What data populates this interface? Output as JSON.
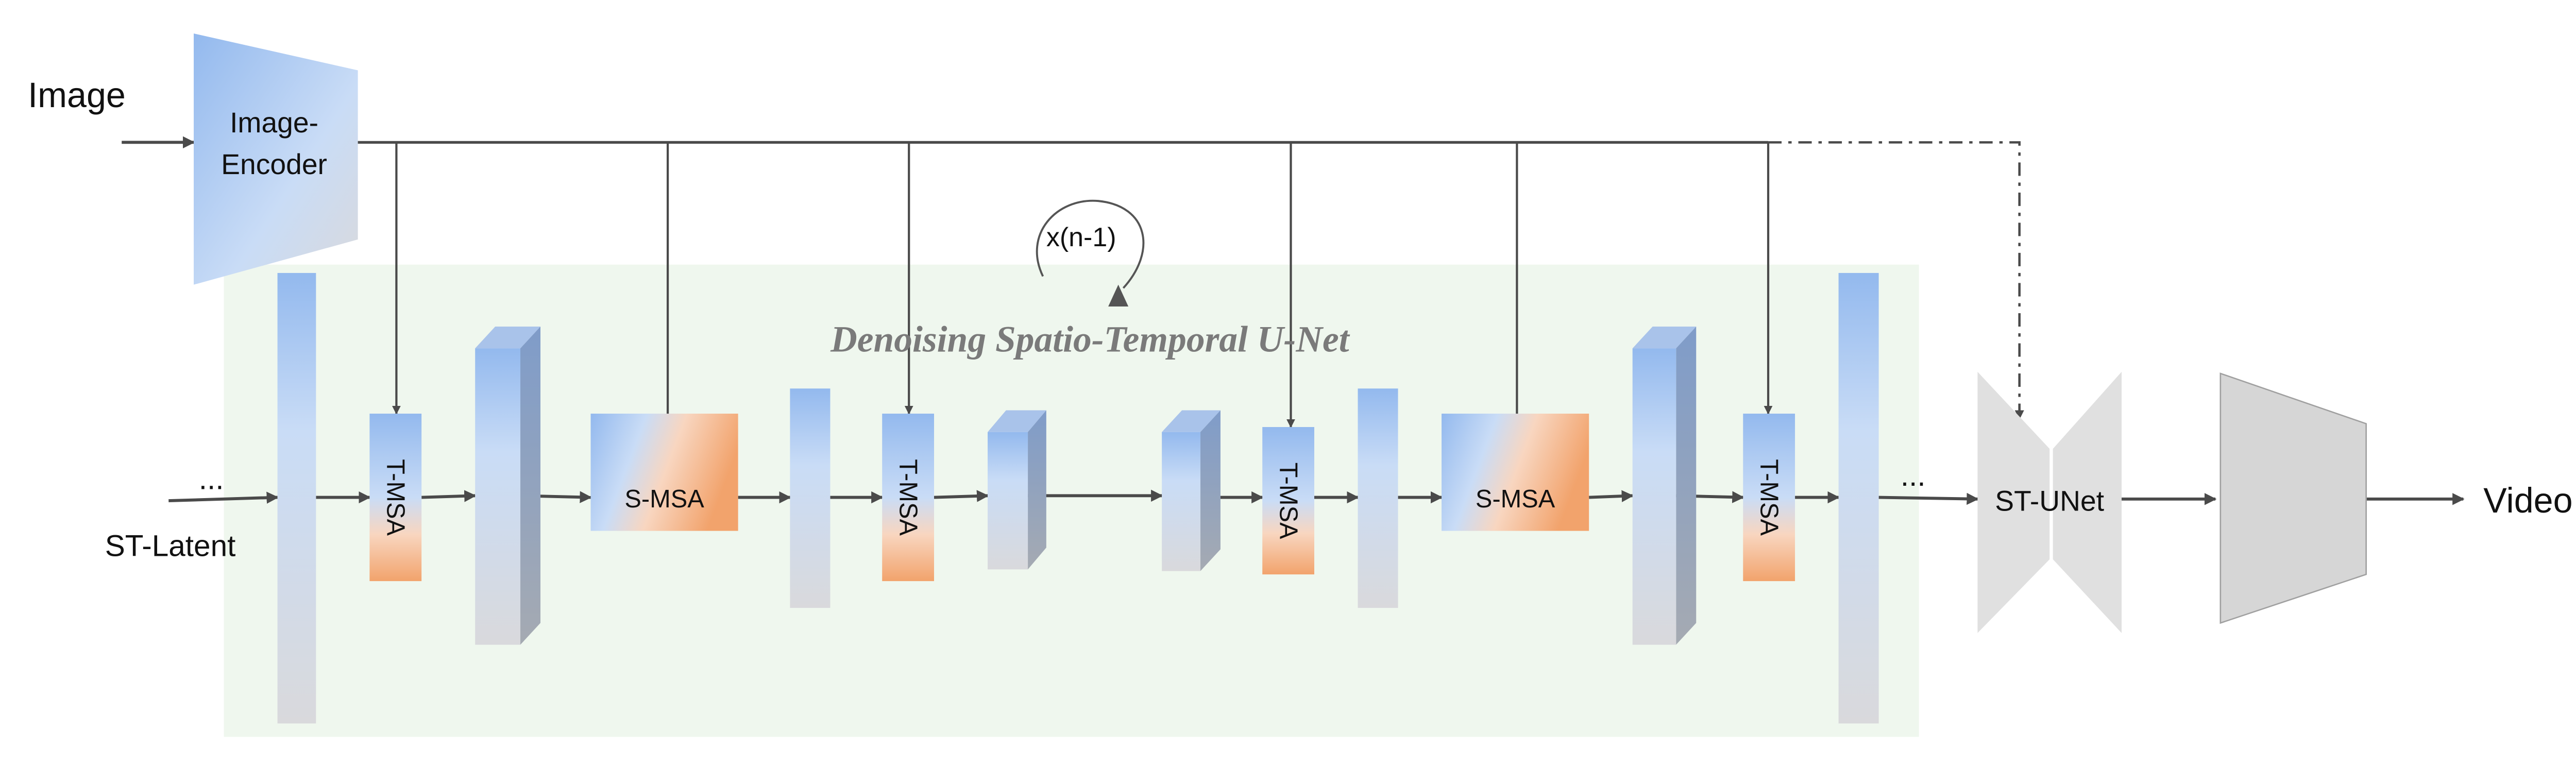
{
  "labels": {
    "image": "Image",
    "encoder_line1": "Image-",
    "encoder_line2": "Encoder",
    "st_latent": "ST-Latent",
    "ellipsis": "...",
    "loop": "x(n-1)",
    "unet_title": "Denoising Spatio-Temporal U-Net",
    "t_msa": "T-MSA",
    "s_msa": "S-MSA",
    "st_unet": "ST-UNet",
    "video": "Video"
  },
  "colors": {
    "panel_bg": "#eff7ee",
    "block_blue": "#93b9ee",
    "block_light": "#c9dcf6",
    "block_gray": "#d9d9dc",
    "attention_orange": "#f2a36c",
    "arrow": "#4a4a4a",
    "decoder_gray": "#d6d6d6"
  }
}
